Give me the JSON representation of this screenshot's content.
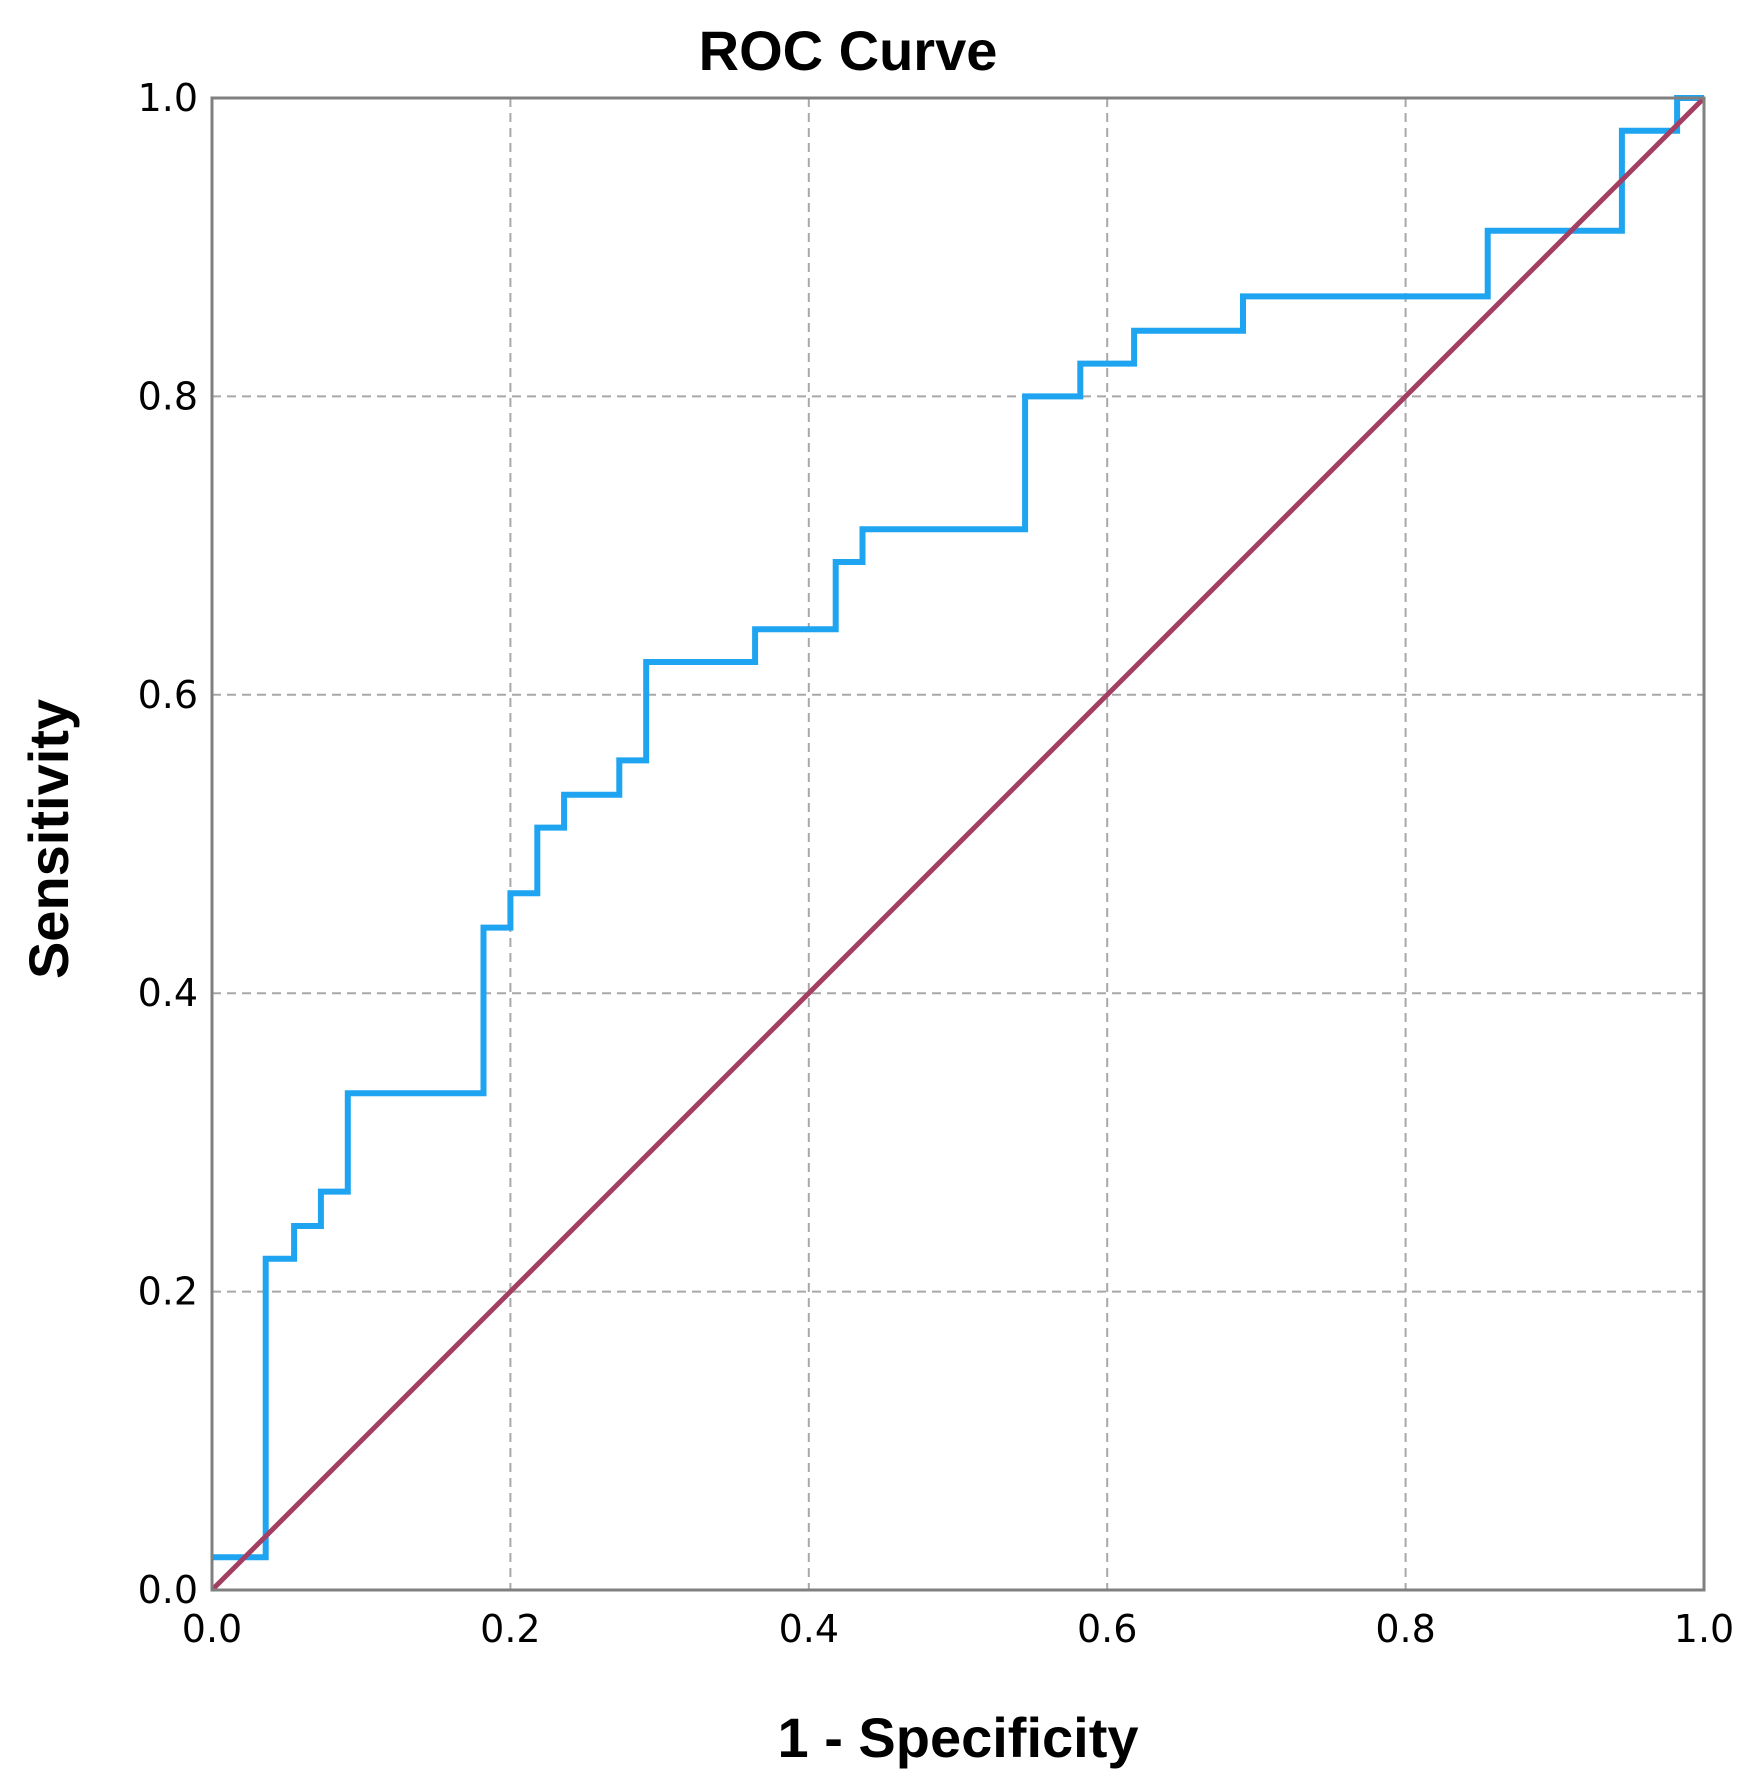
{
  "chart_data": {
    "type": "line",
    "title": "ROC Curve",
    "xlabel": "1 - Specificity",
    "ylabel": "Sensitivity",
    "xlim": [
      0,
      1
    ],
    "ylim": [
      0,
      1
    ],
    "xticks": [
      "0.0",
      "0.2",
      "0.4",
      "0.6",
      "0.8",
      "1.0"
    ],
    "yticks": [
      "0.0",
      "0.2",
      "0.4",
      "0.6",
      "0.8",
      "1.0"
    ],
    "grid": true,
    "grid_style": "dashed",
    "legend": "none",
    "colors": {
      "roc": "#1ea4f0",
      "reference": "#a33f62",
      "grid": "#a8a8a8",
      "frame": "#808080"
    },
    "series": [
      {
        "style": "step",
        "color_key": "roc",
        "x": [
          0.0,
          0.036,
          0.036,
          0.055,
          0.055,
          0.073,
          0.073,
          0.091,
          0.091,
          0.182,
          0.182,
          0.2,
          0.2,
          0.218,
          0.218,
          0.236,
          0.236,
          0.273,
          0.273,
          0.291,
          0.291,
          0.364,
          0.364,
          0.418,
          0.418,
          0.436,
          0.436,
          0.545,
          0.545,
          0.582,
          0.582,
          0.618,
          0.618,
          0.691,
          0.691,
          0.855,
          0.855,
          0.945,
          0.945,
          0.982,
          0.982,
          1.0
        ],
        "y": [
          0.022,
          0.022,
          0.222,
          0.222,
          0.244,
          0.244,
          0.267,
          0.267,
          0.333,
          0.333,
          0.444,
          0.444,
          0.467,
          0.467,
          0.511,
          0.511,
          0.533,
          0.533,
          0.556,
          0.556,
          0.622,
          0.622,
          0.644,
          0.644,
          0.689,
          0.689,
          0.711,
          0.711,
          0.8,
          0.8,
          0.822,
          0.822,
          0.844,
          0.844,
          0.867,
          0.867,
          0.911,
          0.911,
          0.978,
          0.978,
          1.0,
          1.0
        ]
      },
      {
        "style": "line",
        "color_key": "reference",
        "x": [
          0,
          1
        ],
        "y": [
          0,
          1
        ]
      }
    ]
  }
}
